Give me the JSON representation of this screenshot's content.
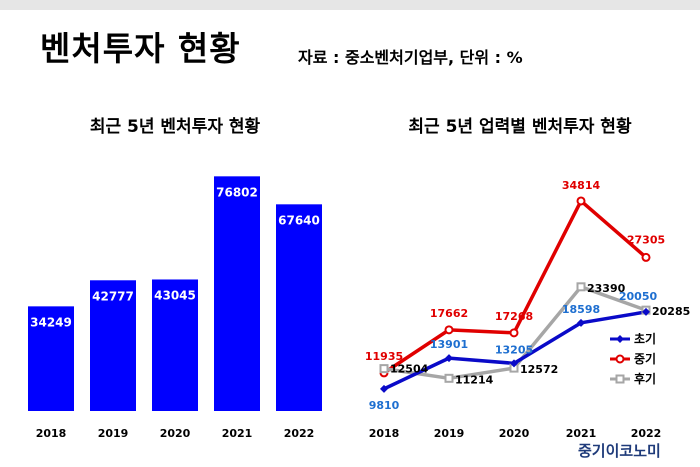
{
  "header": {
    "title": "벤처투자 현황",
    "source": "자료 : 중소벤처기업부, 단위 : %"
  },
  "chart_data": [
    {
      "type": "bar",
      "title": "최근 5년 벤처투자 현황",
      "categories": [
        "2018",
        "2019",
        "2020",
        "2021",
        "2022"
      ],
      "values": [
        34249,
        42777,
        43045,
        76802,
        67640
      ],
      "ylim": [
        0,
        90000
      ],
      "grid": false,
      "bar_color": "#0000ff"
    },
    {
      "type": "line",
      "title": "최근 5년 업력별 벤처투자 현황",
      "categories": [
        "2018",
        "2019",
        "2020",
        "2021",
        "2022"
      ],
      "ylim": [
        5000,
        40000
      ],
      "grid": false,
      "legend": "bottom-right",
      "series": [
        {
          "name": "초기",
          "color": "#0a0ac8",
          "label_color": "#1e6fd0",
          "values": [
            9810,
            13901,
            13205,
            18598,
            20050
          ]
        },
        {
          "name": "중기",
          "color": "#e00000",
          "label_color": "#e00000",
          "values": [
            11935,
            17662,
            17268,
            34814,
            27305
          ]
        },
        {
          "name": "후기",
          "color": "#a6a6a6",
          "label_color": "#000000",
          "values": [
            12504,
            11214,
            12572,
            23390,
            20285
          ]
        }
      ]
    }
  ],
  "brand": "중기이코노미"
}
